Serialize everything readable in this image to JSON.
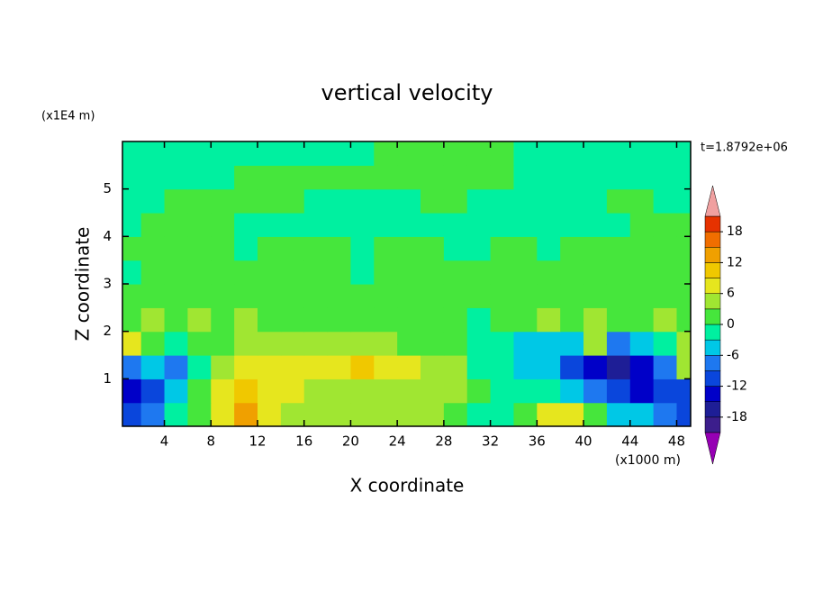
{
  "chart_data": {
    "type": "contour",
    "title": "vertical velocity",
    "y_unit": "(x1E4 m)",
    "x_unit": "(x1000 m)",
    "time_label": "t=1.8792e+06",
    "x_label": "X coordinate",
    "y_label": "Z coordinate",
    "xlim": [
      0.4,
      49.2
    ],
    "ylim": [
      0,
      6
    ],
    "xticks": [
      4,
      8,
      12,
      16,
      20,
      24,
      28,
      32,
      36,
      40,
      44,
      48
    ],
    "yticks": [
      1,
      2,
      3,
      4,
      5
    ],
    "x": [
      1,
      3,
      5,
      7,
      9,
      11,
      13,
      15,
      17,
      19,
      21,
      23,
      25,
      27,
      29,
      31,
      33,
      35,
      37,
      39,
      41,
      43,
      45,
      47,
      49
    ],
    "z": [
      0.25,
      0.75,
      1.25,
      1.75,
      2.25,
      2.75,
      3.25,
      3.75,
      4.25,
      4.75,
      5.25,
      5.75
    ],
    "values": [
      [
        -12,
        -9,
        -3,
        2,
        7,
        12,
        8,
        4,
        4,
        4,
        4,
        4,
        4,
        4,
        2,
        -1,
        -2,
        2,
        6,
        7,
        1,
        -4,
        -6,
        -8,
        -10
      ],
      [
        -14,
        -10,
        -4,
        2,
        7,
        11,
        8,
        6,
        5,
        5,
        5,
        5,
        5,
        5,
        4,
        1,
        -2,
        -3,
        -3,
        -5,
        -8,
        -12,
        -14,
        -12,
        -12
      ],
      [
        -7,
        -4,
        -8,
        -2,
        4,
        6,
        7,
        7,
        7,
        8,
        9,
        8,
        6,
        5,
        3,
        -1,
        -3,
        -5,
        -6,
        -10,
        -14,
        -17,
        -15,
        -8,
        4
      ],
      [
        6,
        2,
        -2,
        1,
        2,
        3,
        3,
        4,
        4,
        4,
        3,
        3,
        2,
        2,
        0,
        -2,
        -3,
        -4,
        -5,
        -5,
        3,
        -7,
        -5,
        -2,
        4
      ],
      [
        1,
        3,
        1,
        4,
        2,
        3,
        2,
        1,
        1,
        1,
        0,
        0,
        1,
        0,
        1,
        -1,
        0,
        1,
        4,
        0,
        5,
        1,
        1,
        3,
        1
      ],
      [
        2,
        1,
        2,
        1,
        1,
        2,
        1,
        1,
        1,
        1,
        1,
        1,
        0,
        1,
        1,
        0,
        1,
        1,
        1,
        1,
        1,
        1,
        1,
        0,
        1
      ],
      [
        -1,
        1,
        1,
        0,
        1,
        1,
        0,
        1,
        1,
        1,
        -1,
        0,
        1,
        1,
        1,
        1,
        0,
        1,
        1,
        1,
        0,
        1,
        1,
        1,
        1
      ],
      [
        1,
        0,
        1,
        1,
        1,
        -1,
        1,
        1,
        1,
        0,
        -1,
        1,
        0,
        1,
        -1,
        -1,
        0,
        0,
        -1,
        1,
        1,
        0,
        1,
        1,
        1
      ],
      [
        -1,
        1,
        1,
        1,
        1,
        -1,
        -1,
        -1,
        -1,
        -1,
        -1,
        -1,
        -1,
        -1,
        -1,
        -1,
        -1,
        -1,
        -1,
        -1,
        -1,
        -1,
        1,
        1,
        1
      ],
      [
        -1,
        -1,
        1,
        1,
        1,
        1,
        1,
        1,
        -1,
        -1,
        -1,
        -1,
        -1,
        1,
        1,
        -1,
        -1,
        -1,
        -1,
        -1,
        -1,
        1,
        1,
        -1,
        -1
      ],
      [
        -1,
        -1,
        -1,
        -1,
        -1,
        1,
        1,
        1,
        1,
        1,
        1,
        1,
        1,
        1,
        1,
        1,
        1,
        -1,
        -1,
        -1,
        -1,
        -1,
        -1,
        -1,
        -1
      ],
      [
        -1,
        -1,
        -1,
        -1,
        -1,
        -1,
        -1,
        -1,
        -1,
        -1,
        -1,
        1,
        1,
        1,
        1,
        1,
        1,
        -1,
        -1,
        -1,
        -1,
        -1,
        -1,
        -1,
        -1
      ]
    ],
    "levels": [
      -21,
      -18,
      -15,
      -12,
      -9,
      -6,
      -3,
      0,
      3,
      6,
      9,
      12,
      15,
      18,
      21
    ],
    "colors": [
      "#3c1e8c",
      "#1e1e96",
      "#0000c8",
      "#0a46dc",
      "#1e78f0",
      "#00c8e6",
      "#00f0a0",
      "#46e63c",
      "#a0e632",
      "#e6e61e",
      "#f0c800",
      "#f0a000",
      "#f06e00",
      "#e63200"
    ],
    "under_color": "#9600b4",
    "over_color": "#f0a0a0",
    "colorbar_ticks": [
      -18,
      -12,
      -6,
      0,
      6,
      12,
      18
    ]
  }
}
